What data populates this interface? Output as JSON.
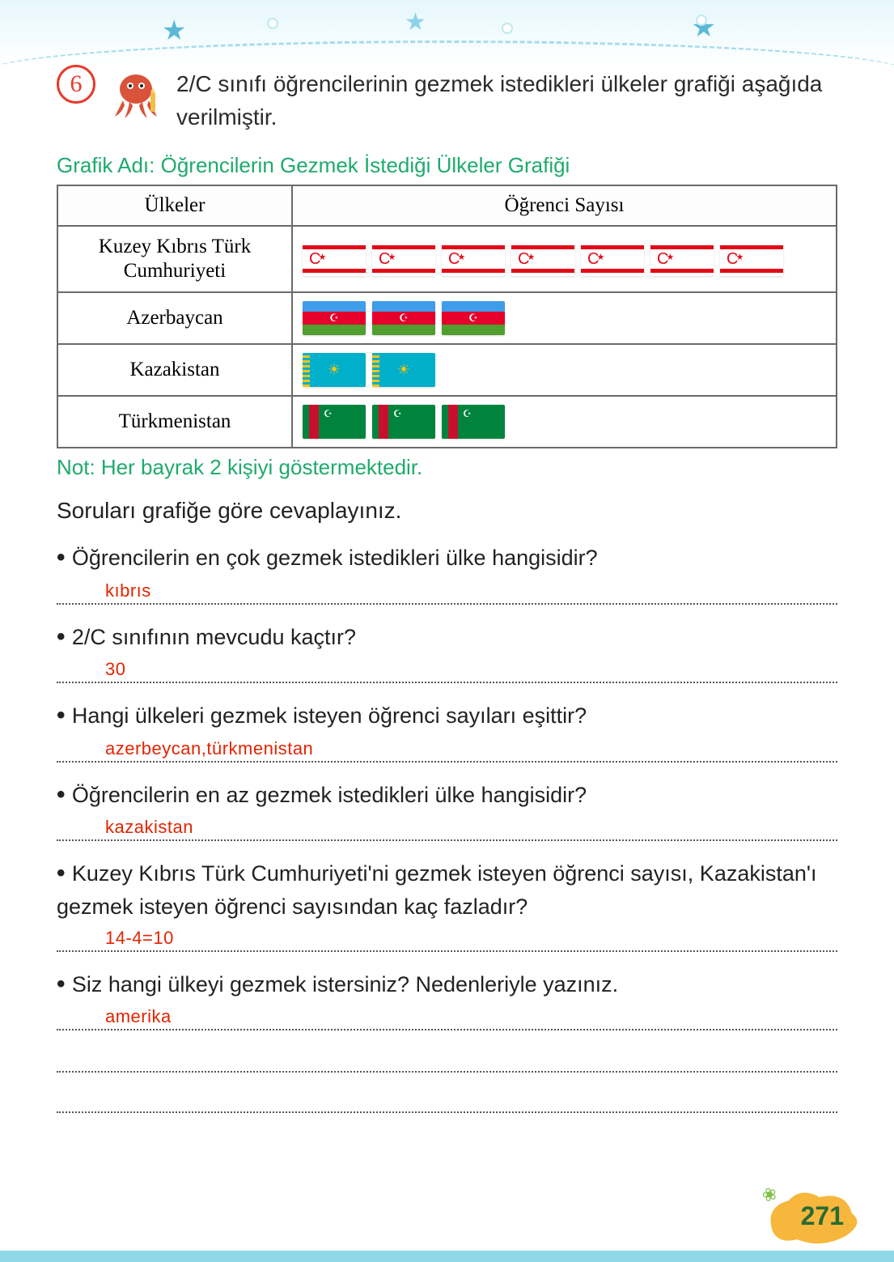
{
  "exercise": {
    "number": "6",
    "intro": "2/C sınıfı öğrencilerinin gezmek istedikleri ülkeler grafiği aşağıda verilmiştir."
  },
  "chart": {
    "title": "Grafik Adı: Öğrencilerin Gezmek İstediği Ülkeler Grafiği",
    "headers": {
      "col1": "Ülkeler",
      "col2": "Öğrenci Sayısı"
    },
    "rows": [
      {
        "country": "Kuzey Kıbrıs Türk Cumhuriyeti",
        "flag": "kktc",
        "count": 7
      },
      {
        "country": "Azerbaycan",
        "flag": "azerbaijan",
        "count": 3
      },
      {
        "country": "Kazakistan",
        "flag": "kazakhstan",
        "count": 2
      },
      {
        "country": "Türkmenistan",
        "flag": "turkmenistan",
        "count": 3
      }
    ],
    "note": "Not: Her bayrak 2 kişiyi göstermektedir."
  },
  "instruction": "Soruları grafiğe göre cevaplayınız.",
  "questions": [
    {
      "q": "Öğrencilerin en çok gezmek istedikleri ülke hangisidir?",
      "a": "kıbrıs"
    },
    {
      "q": "2/C sınıfının mevcudu kaçtır?",
      "a": "30"
    },
    {
      "q": "Hangi ülkeleri gezmek isteyen öğrenci sayıları eşittir?",
      "a": "azerbeycan,türkmenistan"
    },
    {
      "q": "Öğrencilerin en az gezmek istedikleri ülke hangisidir?",
      "a": "kazakistan"
    },
    {
      "q": "Kuzey Kıbrıs Türk Cumhuriyeti'ni gezmek isteyen öğrenci sayısı, Kazakistan'ı gezmek isteyen öğrenci sayısından kaç fazladır?",
      "a": "14-4=10"
    },
    {
      "q": "Siz hangi ülkeyi gezmek istersiniz? Nedenleriyle yazınız.",
      "a": "amerika",
      "extra_lines": 2
    }
  ],
  "page_number": "271",
  "colors": {
    "accent_green": "#1faa6e",
    "answer_red": "#e22400",
    "circle_red": "#e53b2a",
    "border_gray": "#6a6a6a"
  },
  "flags": {
    "kktc": {
      "bg": "#ffffff",
      "stripe": "#e30a17",
      "symbol": "☪",
      "symbol_color": "#e30a17"
    },
    "azerbaijan": {
      "top": "#3f9ce8",
      "mid": "#e4002b",
      "bot": "#509e2f",
      "symbol": "☪",
      "symbol_color": "#ffffff"
    },
    "kazakhstan": {
      "bg": "#00afca",
      "band": "#fec50c",
      "symbol": "☀",
      "symbol_color": "#fec50c"
    },
    "turkmenistan": {
      "bg": "#00843d",
      "band": "#c8102e",
      "symbol": "☪",
      "symbol_color": "#ffffff"
    }
  }
}
